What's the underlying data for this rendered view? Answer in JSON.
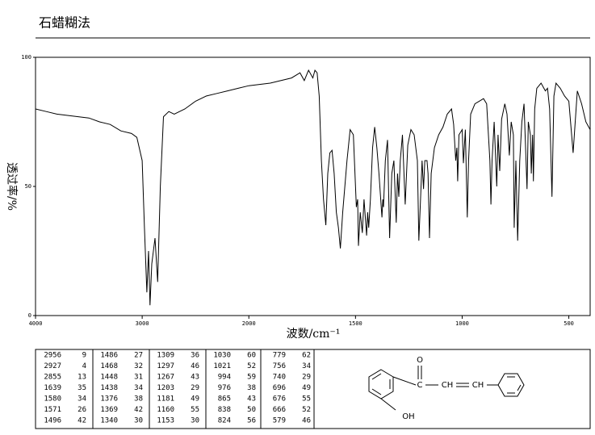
{
  "chart_data": {
    "type": "line",
    "title": "石蜡糊法",
    "x_label": "波数/cm⁻¹",
    "y_label": "透过率/%",
    "xlim": [
      4000,
      400
    ],
    "xbreak": 2000,
    "xticks": [
      4000,
      3000,
      2000,
      1500,
      1000,
      500
    ],
    "ylim": [
      0,
      100
    ],
    "yticks": [
      0,
      50,
      100
    ],
    "series": [
      {
        "color": "#000000",
        "x": [
          4000,
          3900,
          3800,
          3700,
          3600,
          3500,
          3400,
          3300,
          3200,
          3100,
          3050,
          3000,
          2980,
          2956,
          2940,
          2927,
          2910,
          2880,
          2855,
          2830,
          2800,
          2750,
          2700,
          2600,
          2500,
          2400,
          2300,
          2200,
          2100,
          2000,
          1900,
          1800,
          1760,
          1740,
          1720,
          1700,
          1690,
          1680,
          1670,
          1660,
          1650,
          1639,
          1630,
          1620,
          1610,
          1600,
          1590,
          1580,
          1571,
          1560,
          1540,
          1525,
          1510,
          1496,
          1490,
          1486,
          1478,
          1468,
          1460,
          1448,
          1443,
          1438,
          1430,
          1420,
          1410,
          1400,
          1390,
          1376,
          1372,
          1369,
          1360,
          1350,
          1340,
          1330,
          1320,
          1309,
          1303,
          1297,
          1290,
          1280,
          1267,
          1255,
          1240,
          1225,
          1210,
          1203,
          1195,
          1188,
          1181,
          1175,
          1165,
          1160,
          1153,
          1145,
          1130,
          1110,
          1090,
          1070,
          1050,
          1040,
          1030,
          1025,
          1021,
          1015,
          1000,
          994,
          985,
          976,
          970,
          960,
          940,
          920,
          900,
          885,
          870,
          865,
          860,
          850,
          838,
          832,
          824,
          815,
          800,
          790,
          779,
          770,
          760,
          756,
          748,
          740,
          730,
          720,
          710,
          696,
          690,
          680,
          676,
          670,
          666,
          660,
          650,
          630,
          610,
          600,
          590,
          579,
          570,
          560,
          540,
          520,
          500,
          480,
          460,
          440,
          420,
          400
        ],
        "values": [
          80,
          79,
          78,
          77.5,
          77,
          76.5,
          75,
          74,
          71.5,
          70.5,
          69,
          60,
          35,
          9,
          25,
          4,
          20,
          30,
          13,
          50,
          77,
          79,
          78,
          80,
          83,
          85,
          86,
          87,
          88,
          89,
          90,
          92,
          94,
          91,
          95,
          92,
          95,
          94,
          85,
          60,
          45,
          35,
          55,
          63,
          64,
          55,
          40,
          34,
          26,
          40,
          60,
          72,
          70,
          42,
          45,
          27,
          40,
          32,
          45,
          31,
          40,
          34,
          45,
          65,
          73,
          65,
          55,
          38,
          45,
          42,
          60,
          68,
          30,
          55,
          60,
          36,
          55,
          46,
          60,
          70,
          43,
          66,
          72,
          70,
          60,
          29,
          45,
          60,
          49,
          60,
          60,
          55,
          30,
          55,
          65,
          70,
          73,
          78,
          80,
          74,
          60,
          65,
          52,
          70,
          72,
          59,
          72,
          38,
          60,
          78,
          82,
          83,
          84,
          82,
          60,
          43,
          60,
          75,
          50,
          70,
          56,
          76,
          82,
          78,
          62,
          75,
          70,
          34,
          60,
          29,
          60,
          75,
          82,
          49,
          75,
          70,
          55,
          70,
          52,
          80,
          88,
          90,
          87,
          88,
          80,
          46,
          85,
          90,
          88,
          85,
          83,
          63,
          87,
          82,
          75,
          72
        ]
      }
    ]
  },
  "peak_table": {
    "columns": [
      [
        [
          2956,
          9
        ],
        [
          2927,
          4
        ],
        [
          2855,
          13
        ],
        [
          1639,
          35
        ],
        [
          1580,
          34
        ],
        [
          1571,
          26
        ],
        [
          1496,
          42
        ]
      ],
      [
        [
          1486,
          27
        ],
        [
          1468,
          32
        ],
        [
          1448,
          31
        ],
        [
          1438,
          34
        ],
        [
          1376,
          38
        ],
        [
          1369,
          42
        ],
        [
          1340,
          30
        ]
      ],
      [
        [
          1309,
          36
        ],
        [
          1297,
          46
        ],
        [
          1267,
          43
        ],
        [
          1203,
          29
        ],
        [
          1181,
          49
        ],
        [
          1160,
          55
        ],
        [
          1153,
          30
        ]
      ],
      [
        [
          1030,
          60
        ],
        [
          1021,
          52
        ],
        [
          994,
          59
        ],
        [
          976,
          38
        ],
        [
          865,
          43
        ],
        [
          838,
          50
        ],
        [
          824,
          56
        ]
      ],
      [
        [
          779,
          62
        ],
        [
          756,
          34
        ],
        [
          740,
          29
        ],
        [
          696,
          49
        ],
        [
          676,
          55
        ],
        [
          666,
          52
        ],
        [
          579,
          46
        ]
      ]
    ]
  },
  "structure": {
    "labels": [
      "O",
      "C",
      "CH",
      "CH",
      "OH"
    ]
  }
}
